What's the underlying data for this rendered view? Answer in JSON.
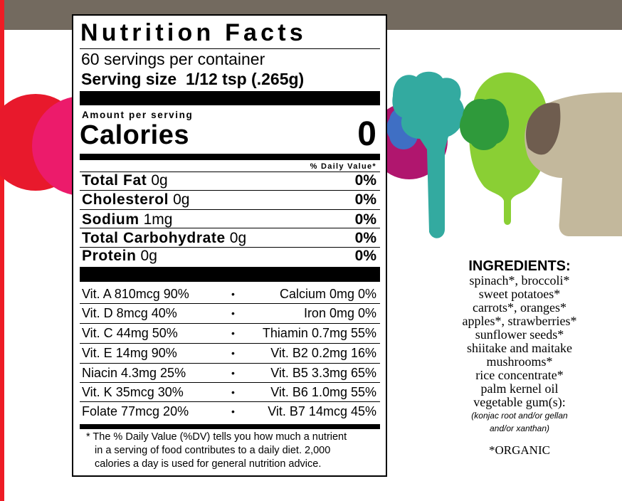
{
  "colors": {
    "top_bar": "#736a5f",
    "left_stripe": "#ee1c25",
    "red_circle": "#e8192c",
    "pink_circle": "#ec1b6b",
    "magenta_blob": "#b0166e",
    "blue_blob": "#3f6fc4",
    "teal_tree": "#33aaa0",
    "green_tree": "#8acf34",
    "dark_green_blob": "#2f9a3b",
    "tan_mushroom": "#c3b89c",
    "brown_cap": "#6f5d4f"
  },
  "label": {
    "title": "Nutrition Facts",
    "servings_per_container": "60 servings per container",
    "serving_size_label": "Serving size",
    "serving_size_value": "1/12 tsp (.265g)",
    "amount_per_serving": "Amount per serving",
    "calories_label": "Calories",
    "calories_value": "0",
    "daily_value_header": "% Daily Value*",
    "nutrients": [
      {
        "name": "Total Fat",
        "amount": "0g",
        "dv": "0%"
      },
      {
        "name": "Cholesterol",
        "amount": "0g",
        "dv": "0%"
      },
      {
        "name": "Sodium",
        "amount": "1mg",
        "dv": "0%"
      },
      {
        "name": "Total Carbohydrate",
        "amount": "0g",
        "dv": "0%"
      },
      {
        "name": "Protein",
        "amount": "0g",
        "dv": "0%"
      }
    ],
    "vitamins": [
      {
        "left": "Vit. A 810mcg  90%",
        "right": "Calcium 0mg    0%"
      },
      {
        "left": "Vit. D 8mcg  40%",
        "right": "Iron 0mg    0%"
      },
      {
        "left": "Vit. C 44mg  50%",
        "right": "Thiamin 0.7mg  55%"
      },
      {
        "left": "Vit. E 14mg  90%",
        "right": "Vit. B2 0.2mg  16%"
      },
      {
        "left": "Niacin 4.3mg  25%",
        "right": "Vit. B5 3.3mg  65%"
      },
      {
        "left": "Vit. K 35mcg  30%",
        "right": "Vit. B6 1.0mg  55%"
      },
      {
        "left": "Folate 77mcg  20%",
        "right": "Vit. B7 14mcg  45%"
      }
    ],
    "separator": "•",
    "footnote": [
      "* The % Daily Value (%DV) tells you how much a nutrient",
      "in a serving of food contributes to a daily diet. 2,000",
      "calories a day is used for general nutrition advice."
    ]
  },
  "ingredients": {
    "heading": "INGREDIENTS:",
    "lines": [
      "spinach*, broccoli*",
      "sweet potatoes*",
      "carrots*, oranges*",
      "apples*, strawberries*",
      "sunflower seeds*",
      "shiitake and maitake",
      "mushrooms*",
      "rice concentrate*",
      "palm kernel oil",
      "vegetable gum(s):"
    ],
    "note_lines": [
      "(konjac root and/or gellan",
      "and/or xanthan)"
    ],
    "organic": "*ORGANIC"
  }
}
